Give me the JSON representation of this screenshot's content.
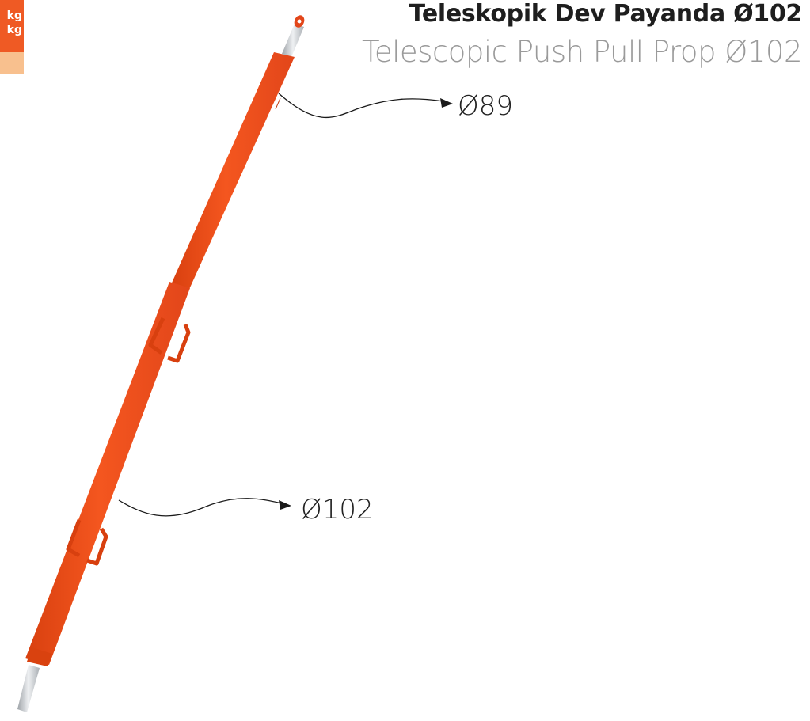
{
  "header": {
    "title_tr": "Teleskopik Dev Payanda Ø102",
    "title_en": "Telescopic Push Pull Prop Ø102"
  },
  "side_tab": {
    "line1": "kg",
    "line2": "kg",
    "color_top": "#ef5a24",
    "color_bottom": "#f8c08e"
  },
  "callouts": {
    "inner_tube_diameter": "Ø89",
    "outer_tube_diameter": "Ø102"
  },
  "colors": {
    "prop_body": "#f2501f",
    "prop_shadow": "#d63d12",
    "metal_rod": "#c9ccd0"
  }
}
